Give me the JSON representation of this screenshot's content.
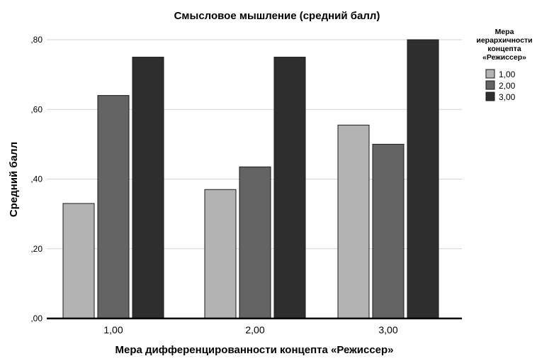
{
  "chart_data": {
    "type": "bar",
    "title": "Смысловое мышление (средний балл)",
    "xlabel": "Мера дифференцированности концепта «Режиссер»",
    "ylabel": "Средний балл",
    "categories": [
      "1,00",
      "2,00",
      "3,00"
    ],
    "yticks": [
      ",00",
      ",20",
      ",40",
      ",60",
      ",80"
    ],
    "ytick_values": [
      0,
      0.2,
      0.4,
      0.6,
      0.8
    ],
    "ylim": [
      0,
      0.8
    ],
    "grid": true,
    "legend": {
      "position": "right",
      "title_lines": [
        "Мера",
        "иерархичности",
        "концепта",
        "«Режиссер»"
      ]
    },
    "series": [
      {
        "name": "1,00",
        "color": "#b3b3b3",
        "values": [
          0.33,
          0.37,
          0.555
        ]
      },
      {
        "name": "2,00",
        "color": "#646464",
        "values": [
          0.64,
          0.435,
          0.5
        ]
      },
      {
        "name": "3,00",
        "color": "#2e2e2e",
        "values": [
          0.75,
          0.75,
          0.8
        ]
      }
    ]
  }
}
